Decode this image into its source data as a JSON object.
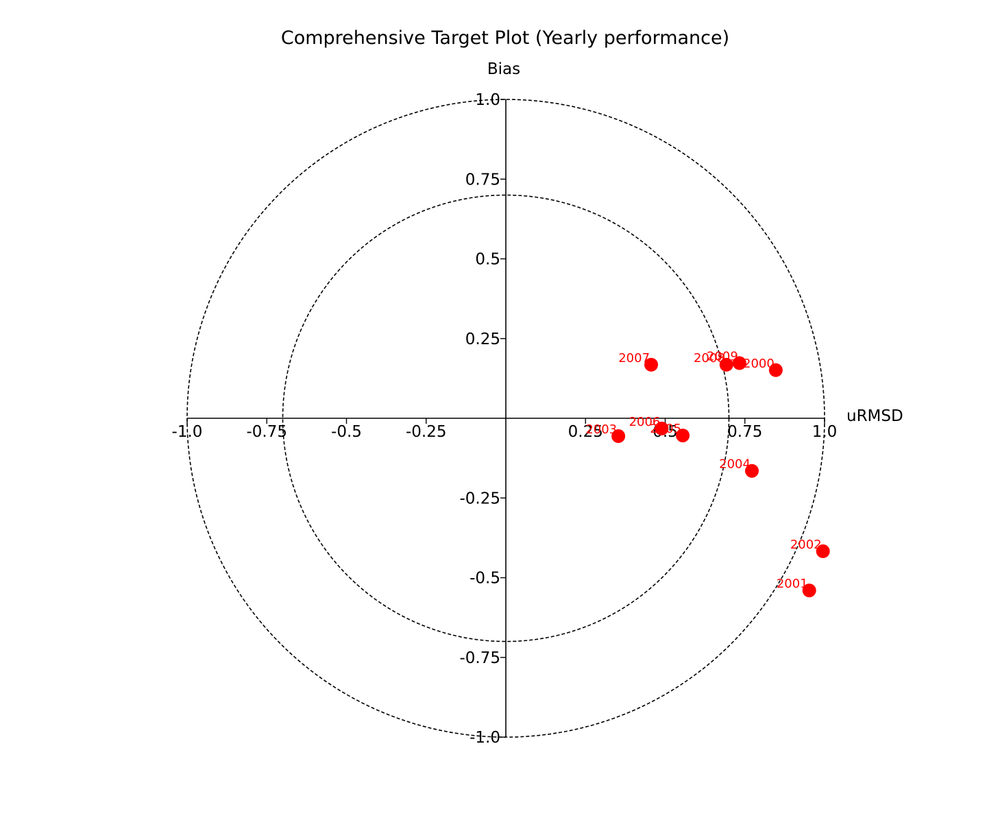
{
  "chart_data": {
    "type": "scatter",
    "title": "Comprehensive Target Plot (Yearly performance)",
    "xlabel": "uRMSD",
    "ylabel": "Bias",
    "xlim": [
      -1.0,
      1.0
    ],
    "ylim": [
      -1.0,
      1.0
    ],
    "circles": [
      0.7,
      1.0
    ],
    "grid": false,
    "marker_color": "#ff0000",
    "x_ticks": [
      {
        "value": -1.0,
        "label": "-1.0"
      },
      {
        "value": -0.75,
        "label": "-0.75"
      },
      {
        "value": -0.5,
        "label": "-0.5"
      },
      {
        "value": -0.25,
        "label": "-0.25"
      },
      {
        "value": 0.25,
        "label": "0.25"
      },
      {
        "value": 0.5,
        "label": "0.5"
      },
      {
        "value": 0.75,
        "label": "0.75"
      },
      {
        "value": 1.0,
        "label": "1.0"
      }
    ],
    "y_ticks": [
      {
        "value": 1.0,
        "label": "1.0"
      },
      {
        "value": 0.75,
        "label": "0.75"
      },
      {
        "value": 0.5,
        "label": "0.5"
      },
      {
        "value": 0.25,
        "label": "0.25"
      },
      {
        "value": -0.25,
        "label": "-0.25"
      },
      {
        "value": -0.5,
        "label": "-0.5"
      },
      {
        "value": -0.75,
        "label": "-0.75"
      },
      {
        "value": -1.0,
        "label": "-1.0"
      }
    ],
    "points": [
      {
        "label": "2000",
        "x": 0.847,
        "y": 0.151
      },
      {
        "label": "2001",
        "x": 0.952,
        "y": -0.54
      },
      {
        "label": "2002",
        "x": 0.995,
        "y": -0.417
      },
      {
        "label": "2003",
        "x": 0.353,
        "y": -0.056
      },
      {
        "label": "2004",
        "x": 0.772,
        "y": -0.165
      },
      {
        "label": "2005",
        "x": 0.555,
        "y": -0.054
      },
      {
        "label": "2006",
        "x": 0.489,
        "y": -0.032
      },
      {
        "label": "2007",
        "x": 0.456,
        "y": 0.168
      },
      {
        "label": "2008",
        "x": 0.692,
        "y": 0.168
      },
      {
        "label": "2009",
        "x": 0.733,
        "y": 0.173
      }
    ]
  }
}
